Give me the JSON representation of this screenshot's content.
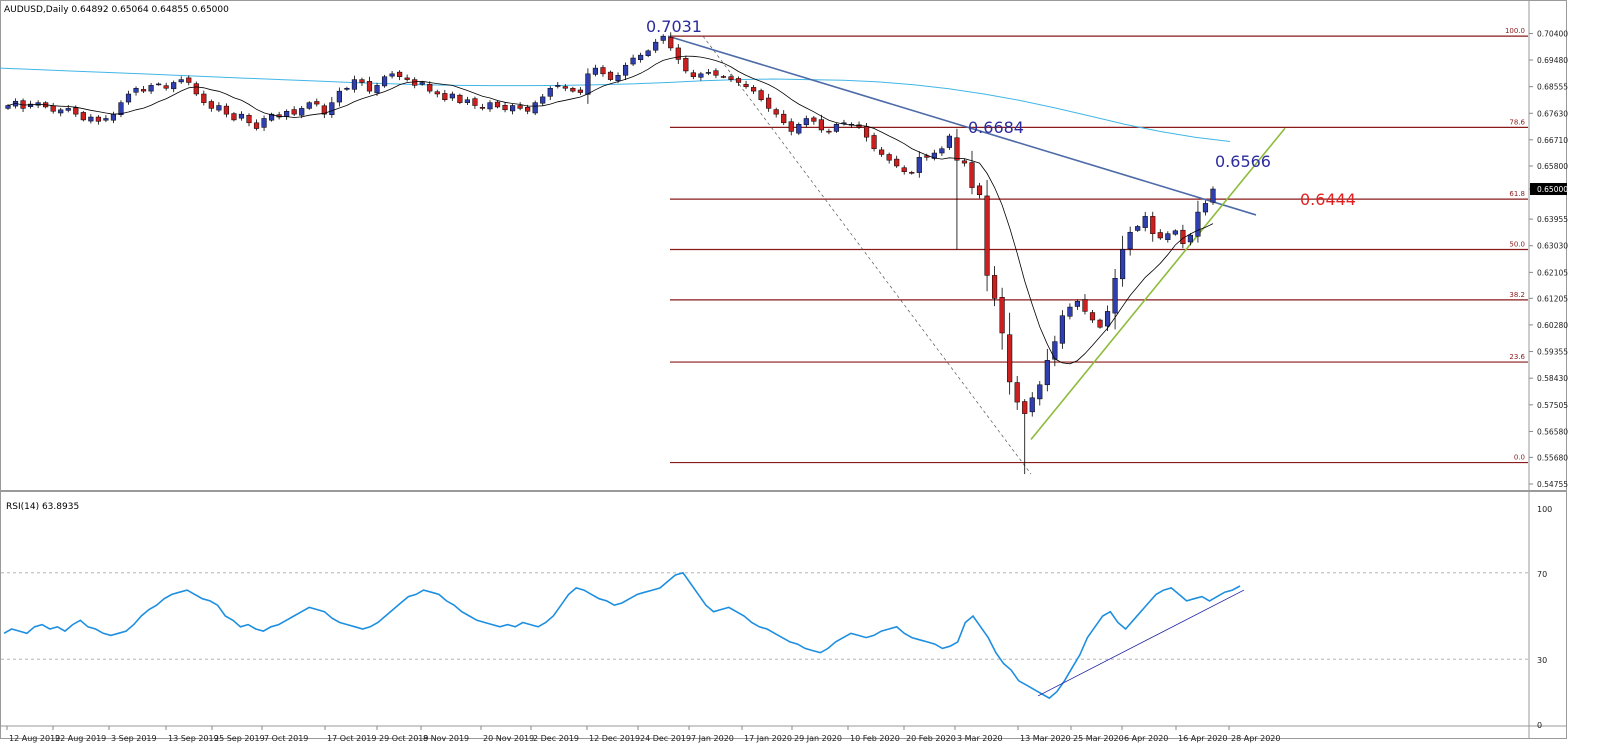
{
  "header": {
    "symbol_line": "AUDUSD,Daily  0.64892 0.65064 0.64855 0.65000"
  },
  "rsi_panel": {
    "title": "RSI(14) 63.8935",
    "levels": [
      "100",
      "70",
      "30",
      "0"
    ]
  },
  "colors": {
    "bull": "#2f3fb0",
    "bear": "#cc1f1f",
    "sma_fast": "#000000",
    "sma_slow": "#42b6e6",
    "downtrend": "#4e6ba8",
    "uptrend": "#8dbb3a",
    "fib": "#8b1a1a",
    "rsi": "#1e8fe0",
    "rsi_trend": "#1a1aa0",
    "label_blue": "#2b2b9e",
    "label_red": "#e02020"
  },
  "chart_data": {
    "type": "candlestick",
    "title": "AUDUSD,Daily",
    "ylim": [
      0.54755,
      0.7087
    ],
    "y_ticks": [
      "0.70400",
      "0.69480",
      "0.68555",
      "0.67630",
      "0.66710",
      "0.65800",
      "0.65000",
      "0.63955",
      "0.63030",
      "0.62105",
      "0.61205",
      "0.60280",
      "0.59355",
      "0.58430",
      "0.57505",
      "0.56580",
      "0.55680",
      "0.54755"
    ],
    "current_price": "0.65000",
    "x_ticks": [
      "12 Aug 2019",
      "22 Aug 2019",
      "3 Sep 2019",
      "13 Sep 2019",
      "25 Sep 2019",
      "7 Oct 2019",
      "17 Oct 2019",
      "29 Oct 2019",
      "8 Nov 2019",
      "20 Nov 2019",
      "2 Dec 2019",
      "12 Dec 2019",
      "24 Dec 2019",
      "7 Jan 2020",
      "17 Jan 2020",
      "29 Jan 2020",
      "10 Feb 2020",
      "20 Feb 2020",
      "3 Mar 2020",
      "13 Mar 2020",
      "25 Mar 2020",
      "6 Apr 2020",
      "16 Apr 2020",
      "28 Apr 2020"
    ],
    "fib_levels": [
      {
        "label": "100.0",
        "price": 0.7031
      },
      {
        "label": "78.6",
        "price": 0.6714
      },
      {
        "label": "61.8",
        "price": 0.6465
      },
      {
        "label": "50.0",
        "price": 0.629
      },
      {
        "label": "38.2",
        "price": 0.6115
      },
      {
        "label": "23.6",
        "price": 0.5899
      },
      {
        "label": "0.0",
        "price": 0.555
      }
    ],
    "annotations": [
      {
        "text": "0.7031",
        "anchor_price": 0.7031,
        "color": "label_blue"
      },
      {
        "text": "0.6684",
        "anchor_price": 0.6684,
        "color": "label_blue"
      },
      {
        "text": "0.6566",
        "anchor_price": 0.6566,
        "color": "label_blue"
      },
      {
        "text": "0.6444",
        "anchor_price": 0.6444,
        "color": "label_red"
      }
    ],
    "trendlines": [
      {
        "name": "downtrend",
        "from": [
          0,
          0.7031
        ],
        "to": [
          1,
          0.641
        ]
      },
      {
        "name": "uptrend",
        "from": [
          0,
          0.563
        ],
        "to": [
          1,
          0.6711
        ]
      },
      {
        "name": "fib-swing",
        "from": [
          0,
          0.7031
        ],
        "to": [
          1,
          0.551
        ]
      }
    ],
    "close": [
      0.679,
      0.6805,
      0.678,
      0.6795,
      0.68,
      0.6785,
      0.677,
      0.6775,
      0.678,
      0.676,
      0.674,
      0.675,
      0.6735,
      0.6745,
      0.676,
      0.68,
      0.683,
      0.685,
      0.684,
      0.686,
      0.6865,
      0.685,
      0.687,
      0.688,
      0.687,
      0.683,
      0.68,
      0.678,
      0.679,
      0.676,
      0.674,
      0.676,
      0.673,
      0.671,
      0.6745,
      0.676,
      0.675,
      0.677,
      0.676,
      0.678,
      0.68,
      0.6795,
      0.676,
      0.68,
      0.684,
      0.685,
      0.688,
      0.687,
      0.684,
      0.686,
      0.689,
      0.69,
      0.689,
      0.688,
      0.686,
      0.687,
      0.684,
      0.683,
      0.681,
      0.683,
      0.68,
      0.681,
      0.679,
      0.678,
      0.68,
      0.6785,
      0.6775,
      0.679,
      0.678,
      0.677,
      0.68,
      0.682,
      0.685,
      0.686,
      0.685,
      0.684,
      0.6835,
      0.69,
      0.692,
      0.69,
      0.688,
      0.6895,
      0.693,
      0.6955,
      0.6965,
      0.698,
      0.701,
      0.7031,
      0.699,
      0.695,
      0.691,
      0.689,
      0.69,
      0.6905,
      0.6895,
      0.689,
      0.688,
      0.687,
      0.6855,
      0.684,
      0.681,
      0.678,
      0.676,
      0.673,
      0.67,
      0.6725,
      0.6745,
      0.6735,
      0.6705,
      0.67,
      0.6725,
      0.673,
      0.6725,
      0.6715,
      0.668,
      0.664,
      0.662,
      0.66,
      0.658,
      0.656,
      0.6555,
      0.661,
      0.661,
      0.6625,
      0.664,
      0.6684,
      0.66,
      0.659,
      0.6505,
      0.648,
      0.62,
      0.612,
      0.6,
      0.583,
      0.576,
      0.572,
      0.5775,
      0.582,
      0.5905,
      0.597,
      0.606,
      0.609,
      0.611,
      0.6075,
      0.6045,
      0.602,
      0.6075,
      0.619,
      0.629,
      0.635,
      0.637,
      0.6405,
      0.6345,
      0.633,
      0.6345,
      0.6355,
      0.631,
      0.634,
      0.642,
      0.645,
      0.65
    ],
    "sma_fast_period": 10,
    "sma_slow": [
      0.692,
      0.6915,
      0.691,
      0.6905,
      0.69,
      0.6895,
      0.689,
      0.6885,
      0.688,
      0.6875,
      0.687,
      0.6866,
      0.6862,
      0.686,
      0.6859,
      0.6859,
      0.686,
      0.6862,
      0.6865,
      0.687,
      0.6876,
      0.688,
      0.6882,
      0.688,
      0.6878,
      0.6872,
      0.6862,
      0.6848,
      0.683,
      0.6808,
      0.6782,
      0.6754,
      0.6725,
      0.67,
      0.668,
      0.6665
    ],
    "rsi": {
      "ylim": [
        0,
        100
      ],
      "levels": [
        70,
        30
      ],
      "values": [
        42,
        44,
        43,
        42,
        45,
        46,
        44,
        45,
        43,
        46,
        48,
        45,
        44,
        42,
        41,
        42,
        43,
        46,
        50,
        53,
        55,
        58,
        60,
        61,
        62,
        60,
        58,
        57,
        55,
        50,
        48,
        45,
        46,
        44,
        43,
        45,
        46,
        48,
        50,
        52,
        54,
        53,
        52,
        49,
        47,
        46,
        45,
        44,
        45,
        47,
        50,
        53,
        56,
        59,
        60,
        62,
        61,
        60,
        57,
        55,
        52,
        50,
        48,
        47,
        46,
        45,
        46,
        45,
        47,
        46,
        45,
        47,
        50,
        55,
        60,
        63,
        62,
        60,
        58,
        57,
        55,
        56,
        58,
        60,
        61,
        62,
        63,
        66,
        69,
        70,
        65,
        60,
        55,
        52,
        53,
        54,
        52,
        50,
        47,
        45,
        44,
        42,
        40,
        38,
        37,
        35,
        34,
        33,
        35,
        38,
        40,
        42,
        41,
        40,
        41,
        43,
        44,
        45,
        42,
        40,
        39,
        38,
        37,
        35,
        36,
        38,
        47,
        50,
        45,
        40,
        33,
        28,
        25,
        20,
        18,
        16,
        14,
        12,
        15,
        20,
        26,
        32,
        40,
        45,
        50,
        52,
        47,
        44,
        48,
        52,
        56,
        60,
        62,
        63,
        60,
        57,
        58,
        59,
        57,
        59,
        61,
        62,
        63.9
      ],
      "trendline": {
        "from": [
          0,
          13
        ],
        "to": [
          1,
          62
        ]
      }
    }
  }
}
